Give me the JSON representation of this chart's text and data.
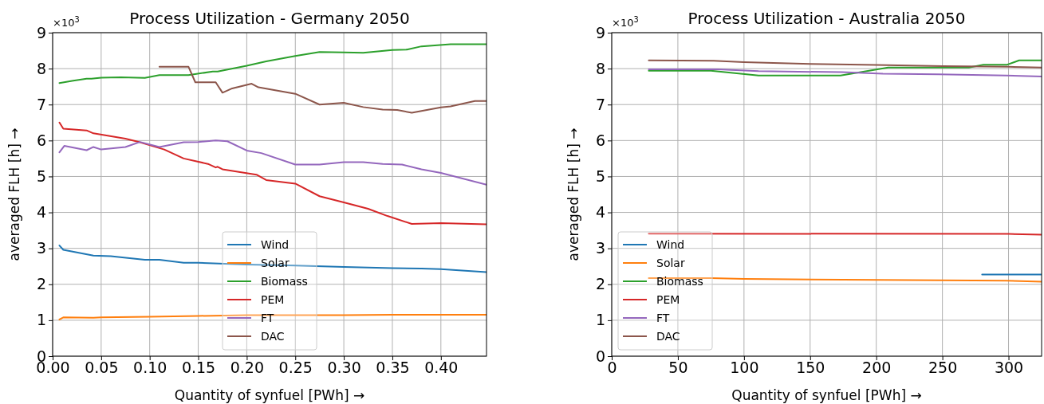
{
  "chart_data": [
    {
      "type": "line",
      "title": "Process Utilization - Germany 2050",
      "xlabel": "Quantity of synfuel [PWh]  →",
      "ylabel": "averaged FLH [h]  →",
      "annotations": [
        "×10$^{3}$"
      ],
      "grid": true,
      "legend": "bottom",
      "xlim": [
        0,
        0.447
      ],
      "ylim": [
        0,
        9
      ],
      "xticks": [
        {
          "value": 0,
          "label": "0.00"
        },
        {
          "value": 0.05,
          "label": "0.05"
        },
        {
          "value": 0.1,
          "label": "0.10"
        },
        {
          "value": 0.15,
          "label": "0.15"
        },
        {
          "value": 0.2,
          "label": "0.20"
        },
        {
          "value": 0.25,
          "label": "0.25"
        },
        {
          "value": 0.3,
          "label": "0.30"
        },
        {
          "value": 0.35,
          "label": "0.35"
        },
        {
          "value": 0.4,
          "label": "0.40"
        }
      ],
      "yticks": [
        0,
        1,
        2,
        3,
        4,
        5,
        6,
        7,
        8,
        9
      ],
      "series": [
        {
          "name": "Wind",
          "color": "#1f77b4",
          "x": [
            0.007,
            0.011,
            0.042,
            0.06,
            0.095,
            0.11,
            0.135,
            0.15,
            0.2,
            0.25,
            0.3,
            0.35,
            0.38,
            0.4,
            0.447
          ],
          "values": [
            3.08,
            2.96,
            2.8,
            2.78,
            2.68,
            2.68,
            2.6,
            2.6,
            2.55,
            2.52,
            2.48,
            2.45,
            2.44,
            2.42,
            2.34
          ]
        },
        {
          "name": "Solar",
          "color": "#ff7f0e",
          "x": [
            0.007,
            0.011,
            0.042,
            0.05,
            0.1,
            0.15,
            0.2,
            0.25,
            0.3,
            0.35,
            0.447
          ],
          "values": [
            1.02,
            1.08,
            1.07,
            1.08,
            1.1,
            1.12,
            1.14,
            1.14,
            1.14,
            1.15,
            1.15
          ]
        },
        {
          "name": "Biomass",
          "color": "#2ca02c",
          "x": [
            0.007,
            0.02,
            0.035,
            0.04,
            0.05,
            0.07,
            0.095,
            0.11,
            0.14,
            0.165,
            0.17,
            0.2,
            0.22,
            0.25,
            0.275,
            0.3,
            0.32,
            0.35,
            0.365,
            0.38,
            0.41,
            0.447
          ],
          "values": [
            7.6,
            7.66,
            7.72,
            7.72,
            7.75,
            7.76,
            7.74,
            7.82,
            7.82,
            7.92,
            7.92,
            8.08,
            8.2,
            8.35,
            8.46,
            8.45,
            8.44,
            8.52,
            8.53,
            8.62,
            8.68,
            8.68
          ]
        },
        {
          "name": "PEM",
          "color": "#d62728",
          "x": [
            0.007,
            0.011,
            0.035,
            0.042,
            0.075,
            0.09,
            0.115,
            0.135,
            0.16,
            0.168,
            0.17,
            0.175,
            0.21,
            0.22,
            0.25,
            0.275,
            0.3,
            0.325,
            0.345,
            0.37,
            0.4,
            0.447
          ],
          "values": [
            6.5,
            6.33,
            6.28,
            6.2,
            6.05,
            5.95,
            5.75,
            5.5,
            5.35,
            5.25,
            5.27,
            5.2,
            5.05,
            4.9,
            4.8,
            4.45,
            4.28,
            4.1,
            3.9,
            3.68,
            3.7,
            3.67
          ]
        },
        {
          "name": "FT",
          "color": "#9467bd",
          "x": [
            0.007,
            0.012,
            0.035,
            0.042,
            0.05,
            0.075,
            0.09,
            0.11,
            0.135,
            0.15,
            0.168,
            0.18,
            0.2,
            0.215,
            0.25,
            0.275,
            0.3,
            0.32,
            0.34,
            0.36,
            0.38,
            0.4,
            0.447
          ],
          "values": [
            5.67,
            5.85,
            5.73,
            5.82,
            5.75,
            5.82,
            5.96,
            5.82,
            5.95,
            5.96,
            6.0,
            5.98,
            5.72,
            5.65,
            5.33,
            5.33,
            5.4,
            5.4,
            5.35,
            5.33,
            5.2,
            5.1,
            4.77
          ]
        },
        {
          "name": "DAC",
          "color": "#8c564b",
          "x": [
            0.11,
            0.14,
            0.147,
            0.168,
            0.175,
            0.185,
            0.205,
            0.212,
            0.25,
            0.275,
            0.3,
            0.32,
            0.34,
            0.355,
            0.37,
            0.4,
            0.41,
            0.435,
            0.447
          ],
          "values": [
            8.05,
            8.05,
            7.62,
            7.62,
            7.33,
            7.45,
            7.58,
            7.48,
            7.3,
            7.0,
            7.05,
            6.93,
            6.86,
            6.85,
            6.77,
            6.92,
            6.95,
            7.1,
            7.1
          ]
        }
      ]
    },
    {
      "type": "line",
      "title": "Process Utilization - Australia 2050",
      "xlabel": "Quantity of synfuel [PWh]  →",
      "ylabel": "averaged FLH [h]  →",
      "annotations": [
        "×10$^{3}$"
      ],
      "grid": true,
      "legend": "bottom left",
      "xlim": [
        0,
        325
      ],
      "ylim": [
        0,
        9
      ],
      "xticks": [
        0,
        50,
        100,
        150,
        200,
        250,
        300
      ],
      "yticks": [
        0,
        1,
        2,
        3,
        4,
        5,
        6,
        7,
        8,
        9
      ],
      "series": [
        {
          "name": "Wind",
          "color": "#1f77b4",
          "x": [
            280,
            325
          ],
          "values": [
            2.27,
            2.27
          ]
        },
        {
          "name": "Solar",
          "color": "#ff7f0e",
          "x": [
            28,
            75,
            100,
            200,
            298,
            325
          ],
          "values": [
            2.17,
            2.17,
            2.15,
            2.12,
            2.1,
            2.07
          ]
        },
        {
          "name": "Biomass",
          "color": "#2ca02c",
          "x": [
            28,
            75,
            111,
            173,
            209,
            270,
            281,
            299,
            308,
            325
          ],
          "values": [
            7.94,
            7.94,
            7.81,
            7.81,
            8.03,
            8.03,
            8.11,
            8.11,
            8.23,
            8.23
          ]
        },
        {
          "name": "PEM",
          "color": "#d62728",
          "x": [
            28,
            300,
            325
          ],
          "values": [
            3.41,
            3.4,
            3.38
          ]
        },
        {
          "name": "FT",
          "color": "#9467bd",
          "x": [
            28,
            80,
            111,
            174,
            205,
            247,
            298,
            325
          ],
          "values": [
            7.98,
            7.98,
            7.93,
            7.9,
            7.86,
            7.84,
            7.81,
            7.78
          ]
        },
        {
          "name": "DAC",
          "color": "#8c564b",
          "x": [
            28,
            77,
            100,
            150,
            200,
            250,
            300,
            325
          ],
          "values": [
            8.23,
            8.22,
            8.18,
            8.13,
            8.1,
            8.07,
            8.05,
            8.03
          ]
        }
      ]
    }
  ]
}
